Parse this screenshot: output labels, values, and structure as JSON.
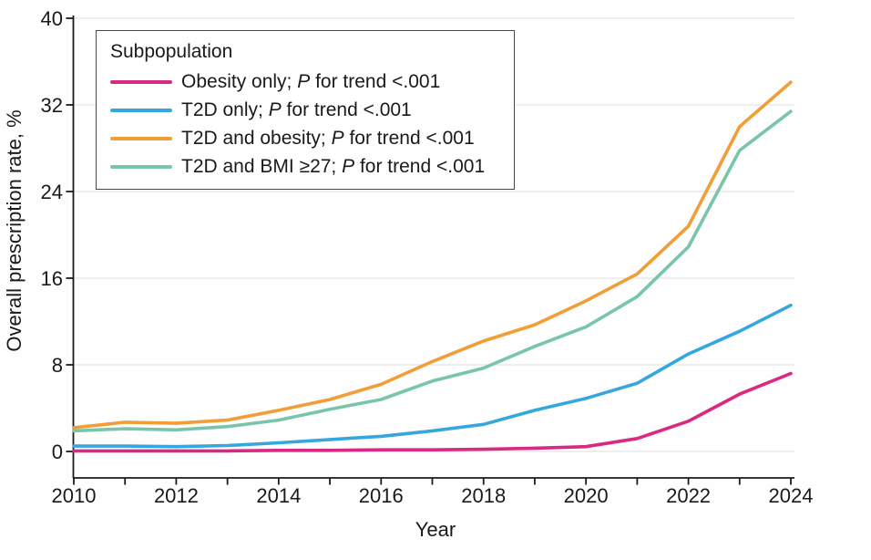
{
  "chart_data": {
    "type": "line",
    "title": "",
    "xlabel": "Year",
    "ylabel": "Overall prescription rate, %",
    "xlim": [
      2010,
      2024
    ],
    "ylim": [
      0,
      40
    ],
    "y_ticks": [
      0,
      8,
      16,
      24,
      32,
      40
    ],
    "x": [
      2010,
      2011,
      2012,
      2013,
      2014,
      2015,
      2016,
      2017,
      2018,
      2019,
      2020,
      2021,
      2022,
      2023,
      2024
    ],
    "x_tick_labels": [
      "2010",
      "2012",
      "2014",
      "2016",
      "2018",
      "2020",
      "2022",
      "2024"
    ],
    "grid": true,
    "legend_position": "top-left",
    "legend_title": "Subpopulation",
    "series": [
      {
        "name": "Obesity only; P for trend <.001",
        "color": "#D92983",
        "values": [
          0.05,
          0.05,
          0.05,
          0.05,
          0.1,
          0.1,
          0.15,
          0.15,
          0.2,
          0.3,
          0.45,
          1.2,
          2.8,
          5.3,
          7.2
        ]
      },
      {
        "name": "T2D only; P for trend <.001",
        "color": "#35A7DF",
        "values": [
          0.5,
          0.5,
          0.45,
          0.55,
          0.8,
          1.1,
          1.4,
          1.9,
          2.5,
          3.8,
          4.9,
          6.3,
          9.0,
          11.1,
          13.5
        ]
      },
      {
        "name": "T2D and obesity; P for trend <.001",
        "color": "#F19E37",
        "values": [
          2.2,
          2.7,
          2.6,
          2.9,
          3.8,
          4.8,
          6.2,
          8.3,
          10.2,
          11.7,
          13.9,
          16.4,
          20.8,
          30.0,
          34.1
        ]
      },
      {
        "name": "T2D and BMI ≥27; P for trend <.001",
        "color": "#79C5AC",
        "values": [
          1.9,
          2.1,
          2.0,
          2.3,
          2.9,
          3.9,
          4.8,
          6.5,
          7.7,
          9.7,
          11.5,
          14.3,
          18.9,
          27.8,
          31.4
        ]
      }
    ]
  },
  "legend": {
    "title": "Subpopulation",
    "items": [
      {
        "pre": "Obesity only; ",
        "p": "P",
        "post": " for trend <.001"
      },
      {
        "pre": "T2D only; ",
        "p": "P",
        "post": " for trend <.001"
      },
      {
        "pre": "T2D and obesity; ",
        "p": "P",
        "post": " for trend <.001"
      },
      {
        "pre": "T2D and BMI ≥27; ",
        "p": "P",
        "post": " for trend <.001"
      }
    ]
  }
}
